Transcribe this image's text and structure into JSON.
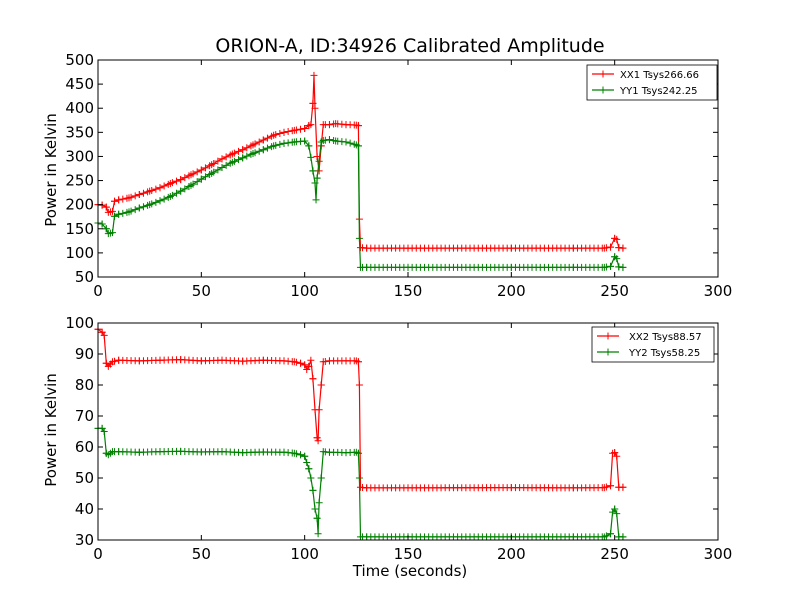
{
  "chart_data": [
    {
      "type": "line",
      "title": "ORION-A, ID:34926 Calibrated Amplitude",
      "xlabel": "",
      "ylabel": "Power in Kelvin",
      "xlim": [
        0,
        300
      ],
      "ylim": [
        50,
        500
      ],
      "xticks": [
        0,
        50,
        100,
        150,
        200,
        250,
        300
      ],
      "yticks": [
        50,
        100,
        150,
        200,
        250,
        300,
        350,
        400,
        450,
        500
      ],
      "legend_position": "top-right",
      "series": [
        {
          "name": "XX1 Tsys266.66",
          "color": "#ff0000",
          "points": [
            [
              0,
              200
            ],
            [
              2,
              199
            ],
            [
              4,
              195
            ],
            [
              5,
              184
            ],
            [
              7,
              186
            ],
            [
              8,
              207
            ],
            [
              10,
              210
            ],
            [
              15,
              214
            ],
            [
              20,
              221
            ],
            [
              25,
              228
            ],
            [
              30,
              235
            ],
            [
              35,
              244
            ],
            [
              40,
              252
            ],
            [
              45,
              262
            ],
            [
              50,
              272
            ],
            [
              55,
              283
            ],
            [
              60,
              295
            ],
            [
              65,
              305
            ],
            [
              70,
              314
            ],
            [
              75,
              324
            ],
            [
              80,
              334
            ],
            [
              85,
              344
            ],
            [
              90,
              350
            ],
            [
              95,
              354
            ],
            [
              100,
              358
            ],
            [
              102,
              364
            ],
            [
              103,
              366
            ],
            [
              104,
              410
            ],
            [
              104.5,
              468
            ],
            [
              105,
              400
            ],
            [
              106,
              300
            ],
            [
              107,
              270
            ],
            [
              108,
              322
            ],
            [
              109,
              366
            ],
            [
              112,
              366
            ],
            [
              115,
              368
            ],
            [
              120,
              366
            ],
            [
              125,
              365
            ],
            [
              126,
              364
            ],
            [
              126.5,
              170
            ],
            [
              127,
              111
            ],
            [
              130,
              110
            ],
            [
              150,
              110
            ],
            [
              200,
              110
            ],
            [
              230,
              110
            ],
            [
              245,
              110
            ],
            [
              248,
              112
            ],
            [
              250,
              130
            ],
            [
              251,
              128
            ],
            [
              252,
              111
            ],
            [
              254,
              110
            ]
          ]
        },
        {
          "name": "YY1 Tsys242.25",
          "color": "#008000",
          "points": [
            [
              0,
              162
            ],
            [
              2,
              160
            ],
            [
              4,
              150
            ],
            [
              5,
              140
            ],
            [
              7,
              142
            ],
            [
              8,
              176
            ],
            [
              10,
              180
            ],
            [
              15,
              185
            ],
            [
              20,
              193
            ],
            [
              25,
              200
            ],
            [
              30,
              208
            ],
            [
              35,
              217
            ],
            [
              40,
              228
            ],
            [
              45,
              240
            ],
            [
              50,
              253
            ],
            [
              55,
              265
            ],
            [
              60,
              277
            ],
            [
              65,
              288
            ],
            [
              70,
              297
            ],
            [
              75,
              306
            ],
            [
              80,
              314
            ],
            [
              85,
              322
            ],
            [
              90,
              327
            ],
            [
              95,
              330
            ],
            [
              100,
              332
            ],
            [
              102,
              322
            ],
            [
              103,
              298
            ],
            [
              104,
              270
            ],
            [
              105,
              245
            ],
            [
              105.5,
              210
            ],
            [
              106,
              255
            ],
            [
              107,
              290
            ],
            [
              108,
              330
            ],
            [
              109,
              333
            ],
            [
              112,
              335
            ],
            [
              115,
              332
            ],
            [
              120,
              330
            ],
            [
              125,
              324
            ],
            [
              126,
              322
            ],
            [
              126.5,
              130
            ],
            [
              127,
              70
            ],
            [
              130,
              70
            ],
            [
              150,
              70
            ],
            [
              200,
              70
            ],
            [
              230,
              70
            ],
            [
              245,
              70
            ],
            [
              248,
              72
            ],
            [
              250,
              92
            ],
            [
              251,
              88
            ],
            [
              252,
              71
            ],
            [
              254,
              70
            ]
          ]
        }
      ]
    },
    {
      "type": "line",
      "title": "",
      "xlabel": "Time (seconds)",
      "ylabel": "Power in Kelvin",
      "xlim": [
        0,
        300
      ],
      "ylim": [
        30,
        100
      ],
      "xticks": [
        0,
        50,
        100,
        150,
        200,
        250,
        300
      ],
      "yticks": [
        30,
        40,
        50,
        60,
        70,
        80,
        90,
        100
      ],
      "legend_position": "top-right",
      "series": [
        {
          "name": "XX2 Tsys88.57",
          "color": "#ff0000",
          "points": [
            [
              0,
              98
            ],
            [
              2,
              97
            ],
            [
              3,
              96
            ],
            [
              4,
              87
            ],
            [
              5,
              86
            ],
            [
              7,
              87.5
            ],
            [
              10,
              88
            ],
            [
              20,
              87.8
            ],
            [
              30,
              88
            ],
            [
              40,
              88.2
            ],
            [
              50,
              87.8
            ],
            [
              60,
              88
            ],
            [
              70,
              87.7
            ],
            [
              80,
              88
            ],
            [
              90,
              87.8
            ],
            [
              95,
              87.5
            ],
            [
              98,
              87
            ],
            [
              100,
              86.5
            ],
            [
              101,
              85
            ],
            [
              102,
              86
            ],
            [
              103,
              88
            ],
            [
              104,
              82
            ],
            [
              105,
              72
            ],
            [
              106,
              63
            ],
            [
              106.5,
              62
            ],
            [
              107,
              72
            ],
            [
              108,
              80
            ],
            [
              109,
              87.5
            ],
            [
              112,
              87.8
            ],
            [
              120,
              87.8
            ],
            [
              125,
              87.8
            ],
            [
              126,
              87.5
            ],
            [
              126.5,
              80
            ],
            [
              127,
              47
            ],
            [
              130,
              46.8
            ],
            [
              150,
              46.8
            ],
            [
              200,
              46.9
            ],
            [
              230,
              46.8
            ],
            [
              245,
              46.9
            ],
            [
              248,
              47.5
            ],
            [
              249,
              58
            ],
            [
              250,
              58.2
            ],
            [
              251,
              57
            ],
            [
              252,
              47
            ],
            [
              254,
              47
            ]
          ]
        },
        {
          "name": "YY2 Tsys58.25",
          "color": "#008000",
          "points": [
            [
              0,
              66
            ],
            [
              2,
              66
            ],
            [
              3,
              65
            ],
            [
              4,
              58
            ],
            [
              5,
              57.5
            ],
            [
              7,
              58.5
            ],
            [
              10,
              58.5
            ],
            [
              20,
              58.3
            ],
            [
              30,
              58.5
            ],
            [
              40,
              58.6
            ],
            [
              50,
              58.4
            ],
            [
              60,
              58.5
            ],
            [
              70,
              58.2
            ],
            [
              80,
              58.4
            ],
            [
              90,
              58.3
            ],
            [
              95,
              58
            ],
            [
              98,
              57.5
            ],
            [
              100,
              57
            ],
            [
              101,
              55
            ],
            [
              102,
              53
            ],
            [
              103,
              50
            ],
            [
              104,
              46
            ],
            [
              105,
              40
            ],
            [
              106,
              37
            ],
            [
              106.5,
              32
            ],
            [
              107,
              42
            ],
            [
              108,
              50
            ],
            [
              109,
              58.5
            ],
            [
              112,
              58.3
            ],
            [
              120,
              58.2
            ],
            [
              125,
              58.3
            ],
            [
              126,
              58
            ],
            [
              126.5,
              50
            ],
            [
              127,
              31
            ],
            [
              130,
              31
            ],
            [
              150,
              31
            ],
            [
              200,
              31
            ],
            [
              230,
              31
            ],
            [
              245,
              31
            ],
            [
              248,
              32
            ],
            [
              249,
              39
            ],
            [
              250,
              40
            ],
            [
              251,
              38.5
            ],
            [
              252,
              31
            ],
            [
              254,
              31
            ]
          ]
        }
      ]
    }
  ]
}
